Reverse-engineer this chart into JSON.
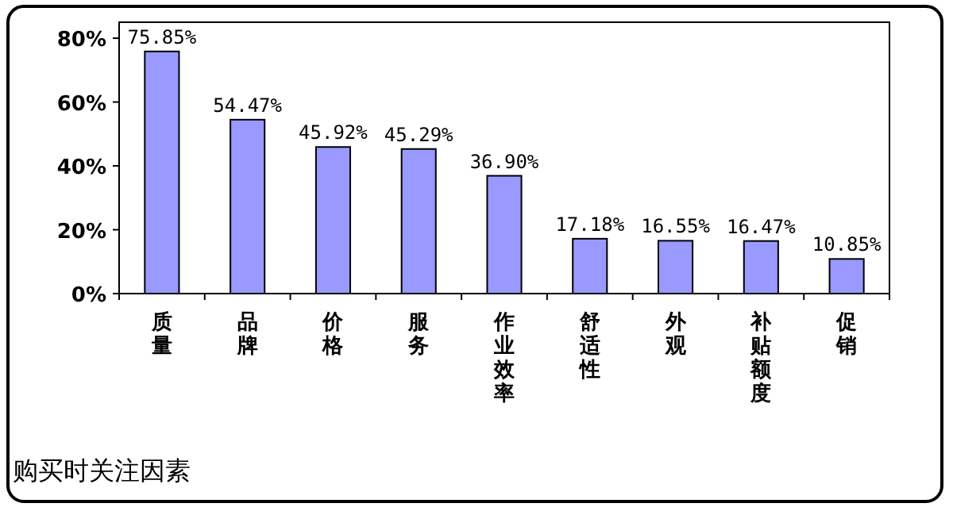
{
  "chart_data": {
    "type": "bar",
    "title": "购买时关注因素",
    "categories": [
      "质量",
      "品牌",
      "价格",
      "服务",
      "作业效率",
      "舒适性",
      "外观",
      "补贴额度",
      "促销"
    ],
    "values": [
      75.85,
      54.47,
      45.92,
      45.29,
      36.9,
      17.18,
      16.55,
      16.47,
      10.85
    ],
    "value_labels": [
      "75.85%",
      "54.47%",
      "45.92%",
      "45.29%",
      "36.90%",
      "17.18%",
      "16.55%",
      "16.47%",
      "10.85%"
    ],
    "color": "#9999ff",
    "ylim": [
      0,
      85
    ],
    "yticks": [
      {
        "value": 0,
        "label": "0%"
      },
      {
        "value": 20,
        "label": "20%"
      },
      {
        "value": 40,
        "label": "40%"
      },
      {
        "value": 60,
        "label": "60%"
      },
      {
        "value": 80,
        "label": "80%"
      }
    ],
    "grid": false
  }
}
